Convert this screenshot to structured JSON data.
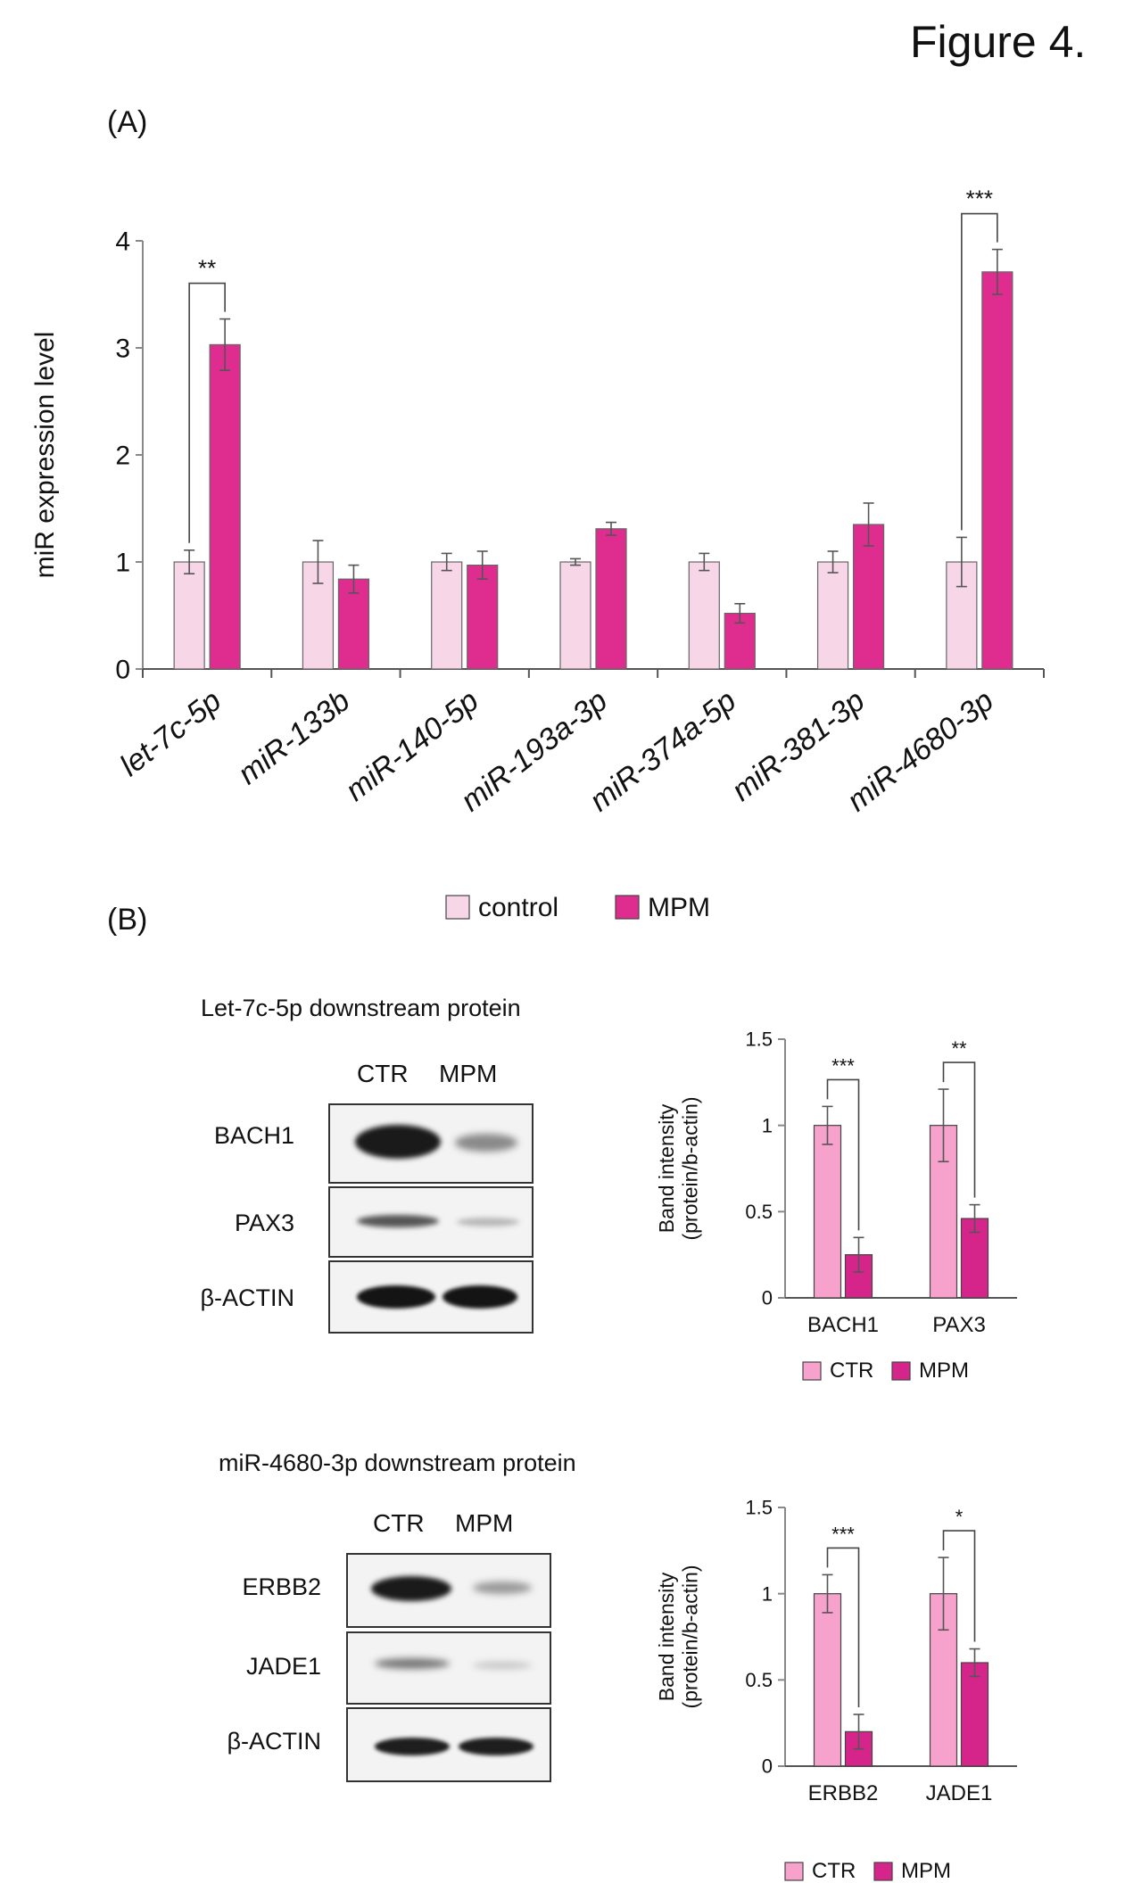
{
  "figure_title": "Figure 4.",
  "panel_a_label": "(A)",
  "panel_b_label": "(B)",
  "blot1": {
    "title": "Let-7c-5p downstream protein",
    "lanes": [
      "CTR",
      "MPM"
    ],
    "rows": [
      "BACH1",
      "PAX3",
      "β-ACTIN"
    ]
  },
  "blot2": {
    "title": "miR-4680-3p downstream protein",
    "lanes": [
      "CTR",
      "MPM"
    ],
    "rows": [
      "ERBB2",
      "JADE1",
      "β-ACTIN"
    ]
  },
  "chart_data": [
    {
      "type": "bar",
      "ylabel": "miR expression level",
      "ylim": [
        0,
        4
      ],
      "yticks": [
        0,
        1,
        2,
        3,
        4
      ],
      "categories": [
        "let-7c-5p",
        "miR-133b",
        "miR-140-5p",
        "miR-193a-3p",
        "miR-374a-5p",
        "miR-381-3p",
        "miR-4680-3p"
      ],
      "series": [
        {
          "name": "control",
          "values": [
            1.0,
            1.0,
            1.0,
            1.0,
            1.0,
            1.0,
            1.0
          ],
          "errors": [
            0.11,
            0.2,
            0.08,
            0.03,
            0.08,
            0.1,
            0.23
          ]
        },
        {
          "name": "MPM",
          "values": [
            3.03,
            0.84,
            0.97,
            1.31,
            0.52,
            1.35,
            3.71
          ],
          "errors": [
            0.24,
            0.13,
            0.13,
            0.06,
            0.09,
            0.2,
            0.21
          ]
        }
      ],
      "significance": [
        {
          "category": "let-7c-5p",
          "label": "**"
        },
        {
          "category": "miR-4680-3p",
          "label": "***"
        }
      ],
      "colors": {
        "control": "#f7d6e8",
        "MPM": "#de2d8f"
      },
      "legend_position": "bottom"
    },
    {
      "type": "bar",
      "ylabel": "Band intensity\n(protein/b-actin)",
      "ylim": [
        0,
        1.5
      ],
      "yticks": [
        "0",
        "0.5",
        "1",
        "1.5"
      ],
      "categories": [
        "BACH1",
        "PAX3"
      ],
      "series": [
        {
          "name": "CTR",
          "values": [
            1.0,
            1.0
          ],
          "errors": [
            0.11,
            0.21
          ]
        },
        {
          "name": "MPM",
          "values": [
            0.25,
            0.46
          ],
          "errors": [
            0.1,
            0.08
          ]
        }
      ],
      "significance": [
        {
          "category": "BACH1",
          "label": "***"
        },
        {
          "category": "PAX3",
          "label": "**"
        }
      ],
      "colors": {
        "CTR": "#f7a1cd",
        "MPM": "#d6258a"
      },
      "legend_position": "bottom"
    },
    {
      "type": "bar",
      "ylabel": "Band intensity\n(protein/b-actin)",
      "ylim": [
        0,
        1.5
      ],
      "yticks": [
        "0",
        "0.5",
        "1",
        "1.5"
      ],
      "categories": [
        "ERBB2",
        "JADE1"
      ],
      "series": [
        {
          "name": "CTR",
          "values": [
            1.0,
            1.0
          ],
          "errors": [
            0.11,
            0.21
          ]
        },
        {
          "name": "MPM",
          "values": [
            0.2,
            0.6
          ],
          "errors": [
            0.1,
            0.08
          ]
        }
      ],
      "significance": [
        {
          "category": "ERBB2",
          "label": "***"
        },
        {
          "category": "JADE1",
          "label": "*"
        }
      ],
      "colors": {
        "CTR": "#f7a1cd",
        "MPM": "#d6258a"
      },
      "legend_position": "bottom"
    }
  ]
}
